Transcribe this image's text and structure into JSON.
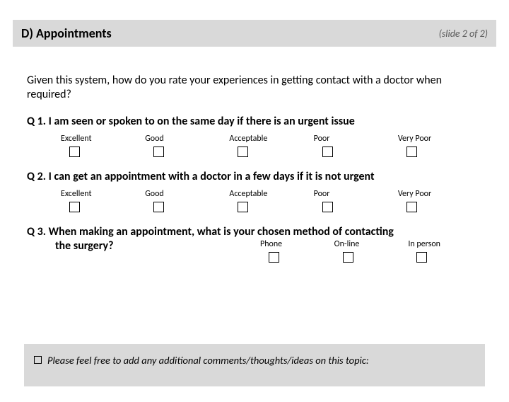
{
  "header": {
    "title": "D) Appointments",
    "slide_indicator": "(slide 2 of 2)"
  },
  "intro_text": "Given this system, how do you rate your experiences in getting contact with a doctor when required?",
  "rating_labels": {
    "excellent": "Excellent",
    "good": "Good",
    "acceptable": "Acceptable",
    "poor": "Poor",
    "very_poor": "Very Poor"
  },
  "contact_labels": {
    "phone": "Phone",
    "online": "On-line",
    "in_person": "In person"
  },
  "questions": {
    "q1": {
      "number": "Q 1.",
      "text": "I am seen or spoken to on the same day if there is an urgent issue"
    },
    "q2": {
      "number": "Q 2.",
      "text": "I can get an appointment with a doctor in a few days if it is not urgent"
    },
    "q3": {
      "number": "Q 3.",
      "text_line1": "When making an appointment, what is your chosen method of contacting",
      "text_line2": "the surgery?"
    }
  },
  "comments_prompt": "Please feel free to add any additional comments/thoughts/ideas on this topic:",
  "colors": {
    "header_bg": "#d9d9d9",
    "page_bg": "#ffffff",
    "text": "#000000",
    "subtle": "#595959"
  }
}
